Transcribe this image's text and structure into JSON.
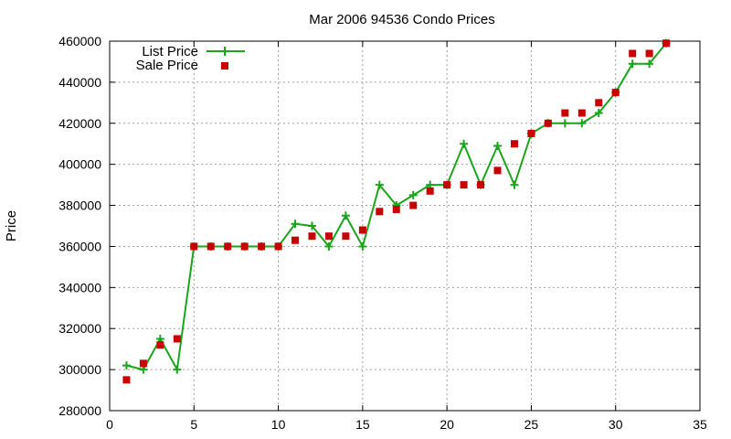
{
  "chart_data": {
    "type": "line",
    "title": "Mar 2006 94536 Condo Prices",
    "xlabel": "",
    "ylabel": "Price",
    "xlim": [
      0,
      35
    ],
    "ylim": [
      280000,
      460000
    ],
    "xticks": [
      0,
      5,
      10,
      15,
      20,
      25,
      30,
      35
    ],
    "yticks": [
      280000,
      300000,
      320000,
      340000,
      360000,
      380000,
      400000,
      420000,
      440000,
      460000
    ],
    "grid": true,
    "legend_position": "top-left",
    "series": [
      {
        "name": "List Price",
        "style": "linespoints",
        "marker": "plus",
        "color": "#1aa51a",
        "x": [
          1,
          2,
          3,
          4,
          5,
          6,
          7,
          8,
          9,
          10,
          11,
          12,
          13,
          14,
          15,
          16,
          17,
          18,
          19,
          20,
          21,
          22,
          23,
          24,
          25,
          26,
          27,
          28,
          29,
          30,
          31,
          32,
          33
        ],
        "y": [
          302000,
          300000,
          315000,
          300000,
          360000,
          360000,
          360000,
          360000,
          360000,
          360000,
          371000,
          370000,
          360000,
          375000,
          360000,
          390000,
          380000,
          385000,
          390000,
          390000,
          410000,
          390000,
          409000,
          390000,
          415000,
          420000,
          420000,
          420000,
          425000,
          435000,
          449000,
          449000,
          459000
        ]
      },
      {
        "name": "Sale Price",
        "style": "points",
        "marker": "square",
        "color": "#c80000",
        "x": [
          1,
          2,
          3,
          4,
          5,
          6,
          7,
          8,
          9,
          10,
          11,
          12,
          13,
          14,
          15,
          16,
          17,
          18,
          19,
          20,
          21,
          22,
          23,
          24,
          25,
          26,
          27,
          28,
          29,
          30,
          31,
          32,
          33
        ],
        "y": [
          295000,
          303000,
          312000,
          315000,
          360000,
          360000,
          360000,
          360000,
          360000,
          360000,
          363000,
          365000,
          365000,
          365000,
          368000,
          377000,
          378000,
          380000,
          387000,
          390000,
          390000,
          390000,
          397000,
          410000,
          415000,
          420000,
          425000,
          425000,
          430000,
          435000,
          454000,
          454000,
          459000
        ]
      }
    ]
  }
}
